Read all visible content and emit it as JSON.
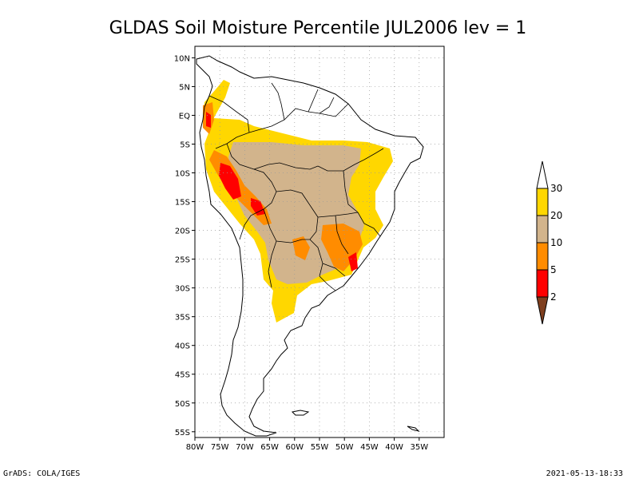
{
  "title": "GLDAS Soil Moisture Percentile JUL2006 lev = 1",
  "footer_left": "GrADS: COLA/IGES",
  "footer_right": "2021-05-13-18:33",
  "map": {
    "lon_range": [
      -80,
      -30
    ],
    "lat_range": [
      -56,
      12
    ],
    "lon_ticks": [
      {
        "value": -80,
        "label": "80W"
      },
      {
        "value": -75,
        "label": "75W"
      },
      {
        "value": -70,
        "label": "70W"
      },
      {
        "value": -65,
        "label": "65W"
      },
      {
        "value": -60,
        "label": "60W"
      },
      {
        "value": -55,
        "label": "55W"
      },
      {
        "value": -50,
        "label": "50W"
      },
      {
        "value": -45,
        "label": "45W"
      },
      {
        "value": -40,
        "label": "40W"
      },
      {
        "value": -35,
        "label": "35W"
      }
    ],
    "lat_ticks": [
      {
        "value": 10,
        "label": "10N"
      },
      {
        "value": 5,
        "label": "5N"
      },
      {
        "value": 0,
        "label": "EQ"
      },
      {
        "value": -5,
        "label": "5S"
      },
      {
        "value": -10,
        "label": "10S"
      },
      {
        "value": -15,
        "label": "15S"
      },
      {
        "value": -20,
        "label": "20S"
      },
      {
        "value": -25,
        "label": "25S"
      },
      {
        "value": -30,
        "label": "30S"
      },
      {
        "value": -35,
        "label": "35S"
      },
      {
        "value": -40,
        "label": "40S"
      },
      {
        "value": -45,
        "label": "45S"
      },
      {
        "value": -50,
        "label": "50S"
      },
      {
        "value": -55,
        "label": "55S"
      }
    ],
    "grid": true
  },
  "colorbar": {
    "levels": [
      "2",
      "5",
      "10",
      "20",
      "30"
    ],
    "colors": [
      "#7f3f1f",
      "#ff0000",
      "#ff8c00",
      "#d2b48c",
      "#ffd700",
      "#ffffff"
    ]
  }
}
